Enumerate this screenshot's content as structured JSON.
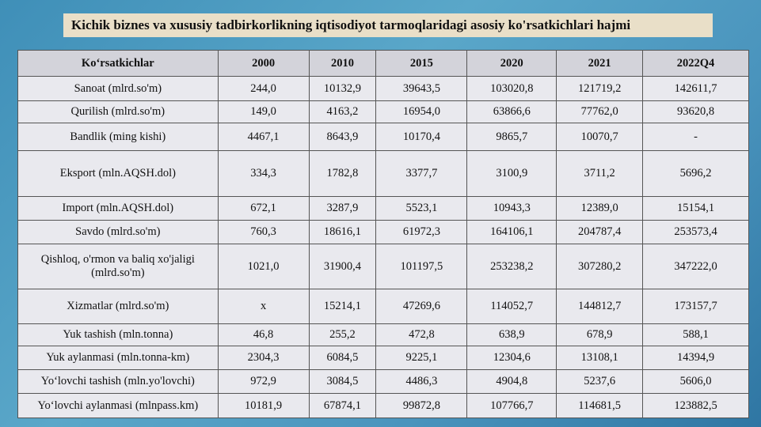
{
  "header": {
    "title": "Kichik biznes va xususiy tadbirkorlikning iqtisodiyot tarmoqlaridagi asosiy ko'rsatkichlari hajmi"
  },
  "table": {
    "columns": [
      "Ko‘rsatkichlar",
      "2000",
      "2010",
      "2015",
      "2020",
      "2021",
      "2022Q4"
    ],
    "rows": [
      [
        "Sanoat (mlrd.so'm)",
        "244,0",
        "10132,9",
        "39643,5",
        "103020,8",
        "121719,2",
        "142611,7"
      ],
      [
        "Qurilish  (mlrd.so'm)",
        "149,0",
        "4163,2",
        "16954,0",
        "63866,6",
        "77762,0",
        "93620,8"
      ],
      [
        "Bandlik (ming kishi)",
        "4467,1",
        "8643,9",
        "10170,4",
        "9865,7",
        "10070,7",
        "-"
      ],
      [
        "Eksport  (mln.AQSH.dol)",
        "334,3",
        "1782,8",
        "3377,7",
        "3100,9",
        "3711,2",
        "5696,2"
      ],
      [
        "Import (mln.AQSH.dol)",
        "672,1",
        "3287,9",
        "5523,1",
        "10943,3",
        "12389,0",
        "15154,1"
      ],
      [
        "Savdo (mlrd.so'm)",
        "760,3",
        "18616,1",
        "61972,3",
        "164106,1",
        "204787,4",
        "253573,4"
      ],
      [
        "Qishloq, o'rmon va baliq xo'jaligi (mlrd.so'm)",
        "1021,0",
        "31900,4",
        "101197,5",
        "253238,2",
        "307280,2",
        "347222,0"
      ],
      [
        "Xizmatlar (mlrd.so'm)",
        "x",
        "15214,1",
        "47269,6",
        "114052,7",
        "144812,7",
        "173157,7"
      ],
      [
        "Yuk tashish (mln.tonna)",
        "46,8",
        "255,2",
        "472,8",
        "638,9",
        "678,9",
        "588,1"
      ],
      [
        "Yuk aylanmasi (mln.tonna-km)",
        "2304,3",
        "6084,5",
        "9225,1",
        "12304,6",
        "13108,1",
        "14394,9"
      ],
      [
        "Yo‘lovchi tashish (mln.yo'lovchi)",
        "972,9",
        "3084,5",
        "4486,3",
        "4904,8",
        "5237,6",
        "5606,0"
      ],
      [
        "Yo‘lovchi aylanmasi (mlnpass.km)",
        "10181,9",
        "67874,1",
        "99872,8",
        "107766,7",
        "114681,5",
        "123882,5"
      ]
    ]
  }
}
